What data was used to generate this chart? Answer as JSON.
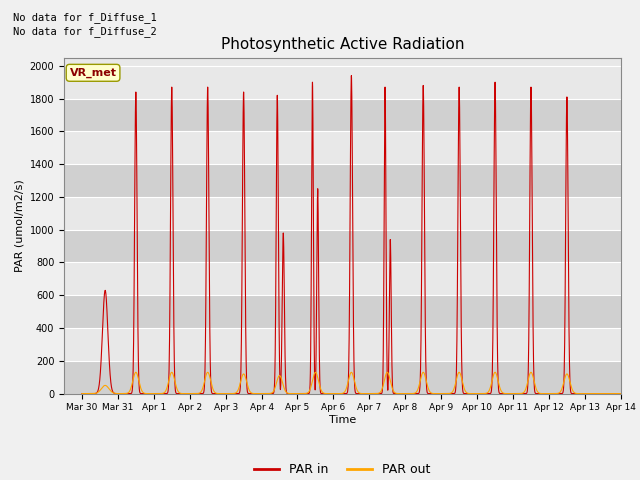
{
  "title": "Photosynthetic Active Radiation",
  "ylabel": "PAR (umol/m2/s)",
  "xlabel": "Time",
  "ylim": [
    0,
    2050
  ],
  "yticks": [
    0,
    200,
    400,
    600,
    800,
    1000,
    1200,
    1400,
    1600,
    1800,
    2000
  ],
  "text_no_data_1": "No data for f_Diffuse_1",
  "text_no_data_2": "No data for f_Diffuse_2",
  "legend_label_1": "PAR in",
  "legend_label_2": "PAR out",
  "color_par_in": "#cc0000",
  "color_par_out": "#ffa500",
  "vr_met_label": "VR_met",
  "bg_light": "#e8e8e8",
  "bg_dark": "#d0d0d0",
  "grid_color": "#ffffff",
  "day_peaks_in": [
    630,
    1840,
    1870,
    1870,
    1840,
    1820,
    1900,
    1940,
    1870,
    1880,
    1870,
    1900,
    1870,
    1810,
    0
  ],
  "day_peaks_out": [
    50,
    130,
    130,
    130,
    120,
    110,
    130,
    130,
    130,
    130,
    130,
    130,
    130,
    120,
    0
  ],
  "tick_labels": [
    "Mar 30",
    "Mar 31",
    "Apr 1",
    "Apr 2",
    "Apr 3",
    "Apr 4",
    "Apr 5",
    "Apr 6",
    "Apr 7",
    "Apr 8",
    "Apr 9",
    "Apr 10",
    "Apr 11",
    "Apr 12",
    "Apr 13",
    "Apr 14"
  ]
}
